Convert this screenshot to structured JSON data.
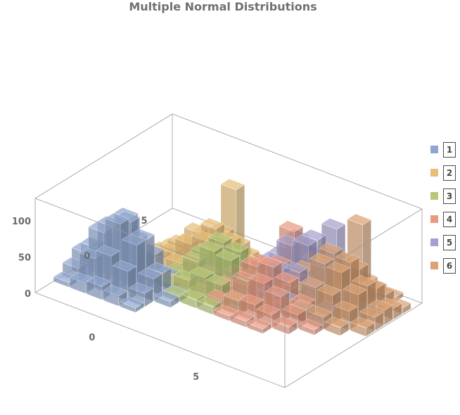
{
  "chart_data": {
    "type": "3d-histogram",
    "title": "Multiple Normal Distributions",
    "xlabel": "",
    "ylabel": "",
    "zlabel": "",
    "x_ticks": [
      0,
      5
    ],
    "y_ticks": [
      0,
      5
    ],
    "z_ticks": [
      0,
      50,
      100
    ],
    "xlim": [
      -3,
      9
    ],
    "ylim": [
      -3,
      9
    ],
    "zlim": [
      0,
      130
    ],
    "bin_width": 0.8,
    "legend": {
      "position": "right"
    },
    "series": [
      {
        "name": "1",
        "color": "#8FA6CE",
        "mean": [
          -1.0,
          1.0
        ],
        "sd": 1.1,
        "peak": 95
      },
      {
        "name": "2",
        "color": "#E8BF7A",
        "mean": [
          1.5,
          4.5
        ],
        "sd": 1.3,
        "peak": 70
      },
      {
        "name": "3",
        "color": "#B7C978",
        "mean": [
          2.5,
          3.5
        ],
        "sd": 1.1,
        "peak": 72
      },
      {
        "name": "4",
        "color": "#E99A83",
        "mean": [
          4.5,
          4.0
        ],
        "sd": 1.3,
        "peak": 60
      },
      {
        "name": "5",
        "color": "#A6A0CC",
        "mean": [
          5.2,
          5.8
        ],
        "sd": 1.2,
        "peak": 88
      },
      {
        "name": "6",
        "color": "#DCA376",
        "mean": [
          6.5,
          6.0
        ],
        "sd": 1.3,
        "peak": 75
      }
    ],
    "tallest_bars": [
      {
        "series": "2",
        "x": 1.2,
        "y": 5.6,
        "z": 112
      },
      {
        "series": "4",
        "x": 4.0,
        "y": 5.6,
        "z": 85
      },
      {
        "series": "5",
        "x": 5.6,
        "y": 6.4,
        "z": 98
      },
      {
        "series": "6",
        "x": 6.4,
        "y": 7.2,
        "z": 105
      },
      {
        "series": "1",
        "x": -1.2,
        "y": 0.8,
        "z": 88
      }
    ]
  }
}
